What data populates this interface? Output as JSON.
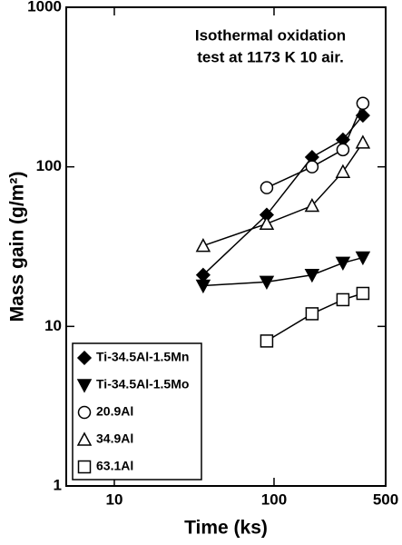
{
  "chart_data": {
    "type": "line",
    "xlabel": "Time (ks)",
    "ylabel": "Mass gain (g/m²)",
    "annotation": [
      "Isothermal oxidation",
      "test at 1173 K 10 air."
    ],
    "xscale": "log",
    "yscale": "log",
    "xlim": [
      5,
      500
    ],
    "ylim": [
      1,
      1000
    ],
    "xticks": [
      10,
      100,
      500
    ],
    "yticks": [
      1,
      10,
      100,
      1000
    ],
    "legend": "lower left",
    "series": [
      {
        "name": "Ti-34.5Al-1.5Mn",
        "marker": "diamond",
        "filled": true,
        "color": "#000000",
        "x": [
          36,
          90,
          173,
          270,
          360
        ],
        "values": [
          21,
          50,
          115,
          148,
          210
        ]
      },
      {
        "name": "Ti-34.5Al-1.5Mo",
        "marker": "triangle-down",
        "filled": true,
        "color": "#000000",
        "x": [
          36,
          90,
          173,
          270,
          360
        ],
        "values": [
          18,
          19,
          21,
          25,
          27
        ]
      },
      {
        "name": "20.9Al",
        "marker": "circle",
        "filled": false,
        "color": "#000000",
        "x": [
          90,
          173,
          270,
          360
        ],
        "values": [
          74,
          100,
          128,
          250
        ]
      },
      {
        "name": "34.9Al",
        "marker": "triangle-up",
        "filled": false,
        "color": "#000000",
        "x": [
          36,
          90,
          173,
          270,
          360
        ],
        "values": [
          32,
          44,
          57,
          93,
          142
        ]
      },
      {
        "name": "63.1Al",
        "marker": "square",
        "filled": false,
        "color": "#000000",
        "x": [
          90,
          173,
          270,
          360
        ],
        "values": [
          8.1,
          12,
          14.7,
          16.1
        ]
      }
    ]
  }
}
